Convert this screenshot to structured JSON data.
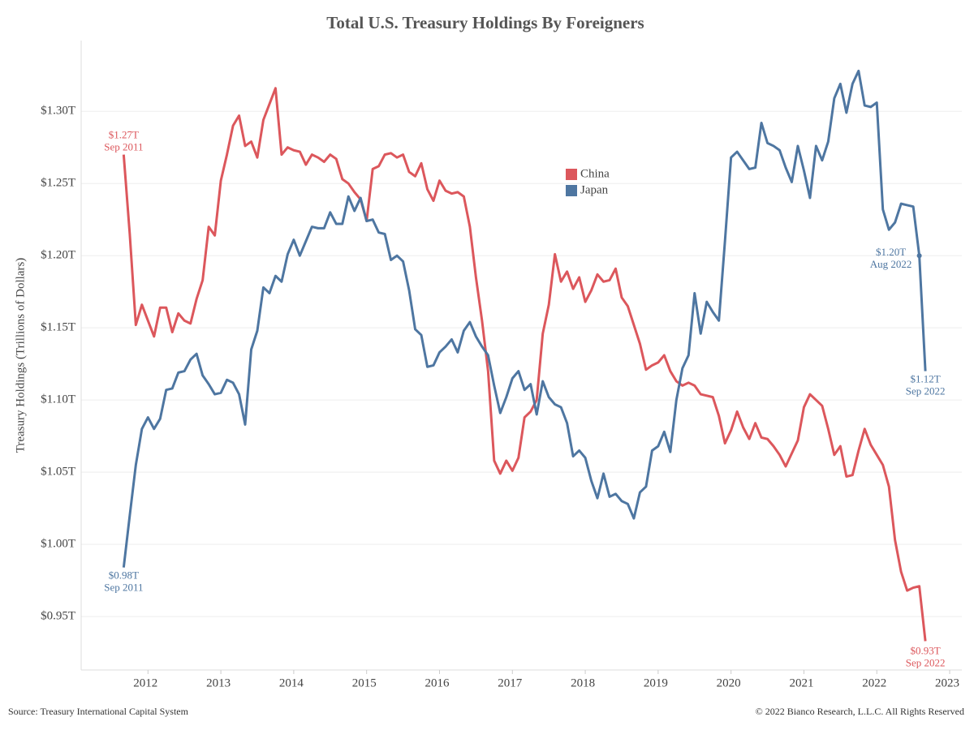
{
  "chart_data": {
    "type": "line",
    "title": "Total U.S. Treasury Holdings By Foreigners",
    "y_label": "Treasury Holdings (Trillions of Dollars)",
    "source": "Source: Treasury International Capital System",
    "copyright": "© 2022 Bianco Research, L.L.C. All Rights Reserved",
    "legend": "top-center",
    "grid": true,
    "x": [
      "2011-09",
      "2011-10",
      "2011-11",
      "2011-12",
      "2012-01",
      "2012-02",
      "2012-03",
      "2012-04",
      "2012-05",
      "2012-06",
      "2012-07",
      "2012-08",
      "2012-09",
      "2012-10",
      "2012-11",
      "2012-12",
      "2013-01",
      "2013-02",
      "2013-03",
      "2013-04",
      "2013-05",
      "2013-06",
      "2013-07",
      "2013-08",
      "2013-09",
      "2013-10",
      "2013-11",
      "2013-12",
      "2014-01",
      "2014-02",
      "2014-03",
      "2014-04",
      "2014-05",
      "2014-06",
      "2014-07",
      "2014-08",
      "2014-09",
      "2014-10",
      "2014-11",
      "2014-12",
      "2015-01",
      "2015-02",
      "2015-03",
      "2015-04",
      "2015-05",
      "2015-06",
      "2015-07",
      "2015-08",
      "2015-09",
      "2015-10",
      "2015-11",
      "2015-12",
      "2016-01",
      "2016-02",
      "2016-03",
      "2016-04",
      "2016-05",
      "2016-06",
      "2016-07",
      "2016-08",
      "2016-09",
      "2016-10",
      "2016-11",
      "2016-12",
      "2017-01",
      "2017-02",
      "2017-03",
      "2017-04",
      "2017-05",
      "2017-06",
      "2017-07",
      "2017-08",
      "2017-09",
      "2017-10",
      "2017-11",
      "2017-12",
      "2018-01",
      "2018-02",
      "2018-03",
      "2018-04",
      "2018-05",
      "2018-06",
      "2018-07",
      "2018-08",
      "2018-09",
      "2018-10",
      "2018-11",
      "2018-12",
      "2019-01",
      "2019-02",
      "2019-03",
      "2019-04",
      "2019-05",
      "2019-06",
      "2019-07",
      "2019-08",
      "2019-09",
      "2019-10",
      "2019-11",
      "2019-12",
      "2020-01",
      "2020-02",
      "2020-03",
      "2020-04",
      "2020-05",
      "2020-06",
      "2020-07",
      "2020-08",
      "2020-09",
      "2020-10",
      "2020-11",
      "2020-12",
      "2021-01",
      "2021-02",
      "2021-03",
      "2021-04",
      "2021-05",
      "2021-06",
      "2021-07",
      "2021-08",
      "2021-09",
      "2021-10",
      "2021-11",
      "2021-12",
      "2022-01",
      "2022-02",
      "2022-03",
      "2022-04",
      "2022-05",
      "2022-06",
      "2022-07",
      "2022-08",
      "2022-09"
    ],
    "series": [
      {
        "name": "China",
        "color": "#dc575c",
        "values": [
          1.27,
          1.215,
          1.152,
          1.166,
          1.155,
          1.144,
          1.164,
          1.164,
          1.147,
          1.16,
          1.155,
          1.153,
          1.17,
          1.183,
          1.22,
          1.214,
          1.252,
          1.27,
          1.29,
          1.297,
          1.276,
          1.279,
          1.268,
          1.294,
          1.305,
          1.316,
          1.27,
          1.275,
          1.273,
          1.272,
          1.263,
          1.27,
          1.268,
          1.265,
          1.27,
          1.267,
          1.253,
          1.25,
          1.244,
          1.239,
          1.224,
          1.26,
          1.262,
          1.27,
          1.271,
          1.268,
          1.27,
          1.258,
          1.255,
          1.264,
          1.246,
          1.238,
          1.252,
          1.245,
          1.243,
          1.244,
          1.241,
          1.22,
          1.185,
          1.155,
          1.12,
          1.058,
          1.049,
          1.058,
          1.051,
          1.06,
          1.088,
          1.092,
          1.1,
          1.146,
          1.166,
          1.201,
          1.182,
          1.189,
          1.177,
          1.185,
          1.168,
          1.176,
          1.187,
          1.182,
          1.183,
          1.191,
          1.171,
          1.165,
          1.152,
          1.139,
          1.121,
          1.124,
          1.126,
          1.131,
          1.12,
          1.113,
          1.11,
          1.112,
          1.11,
          1.104,
          1.103,
          1.102,
          1.089,
          1.07,
          1.079,
          1.092,
          1.081,
          1.073,
          1.084,
          1.074,
          1.073,
          1.068,
          1.062,
          1.054,
          1.063,
          1.072,
          1.095,
          1.104,
          1.1,
          1.096,
          1.08,
          1.062,
          1.068,
          1.047,
          1.048,
          1.065,
          1.08,
          1.069,
          1.062,
          1.055,
          1.04,
          1.003,
          0.981,
          0.968,
          0.97,
          0.971,
          0.933
        ]
      },
      {
        "name": "Japan",
        "color": "#4e76a1",
        "values": [
          0.984,
          1.02,
          1.055,
          1.08,
          1.088,
          1.08,
          1.087,
          1.107,
          1.108,
          1.119,
          1.12,
          1.128,
          1.132,
          1.117,
          1.111,
          1.104,
          1.105,
          1.114,
          1.112,
          1.104,
          1.083,
          1.135,
          1.148,
          1.178,
          1.174,
          1.186,
          1.182,
          1.201,
          1.211,
          1.2,
          1.21,
          1.22,
          1.219,
          1.219,
          1.23,
          1.222,
          1.222,
          1.241,
          1.231,
          1.24,
          1.224,
          1.225,
          1.216,
          1.215,
          1.197,
          1.2,
          1.196,
          1.176,
          1.149,
          1.145,
          1.123,
          1.124,
          1.133,
          1.137,
          1.142,
          1.133,
          1.148,
          1.154,
          1.144,
          1.137,
          1.131,
          1.11,
          1.091,
          1.102,
          1.115,
          1.12,
          1.107,
          1.111,
          1.09,
          1.113,
          1.102,
          1.097,
          1.095,
          1.084,
          1.061,
          1.065,
          1.06,
          1.044,
          1.032,
          1.049,
          1.033,
          1.035,
          1.03,
          1.028,
          1.018,
          1.036,
          1.04,
          1.065,
          1.068,
          1.078,
          1.064,
          1.1,
          1.122,
          1.131,
          1.174,
          1.146,
          1.168,
          1.161,
          1.155,
          1.21,
          1.268,
          1.272,
          1.266,
          1.26,
          1.261,
          1.292,
          1.278,
          1.276,
          1.273,
          1.261,
          1.251,
          1.276,
          1.259,
          1.24,
          1.276,
          1.266,
          1.279,
          1.309,
          1.319,
          1.299,
          1.319,
          1.328,
          1.304,
          1.303,
          1.306,
          1.232,
          1.218,
          1.223,
          1.236,
          1.235,
          1.234,
          1.2,
          1.12
        ]
      }
    ],
    "annotations": [
      {
        "text": "$1.27T",
        "date": "Sep 2011"
      },
      {
        "text": "$0.98T",
        "date": "Sep 2011"
      },
      {
        "text": "$1.20T",
        "date": "Aug 2022"
      },
      {
        "text": "$1.12T",
        "date": "Sep 2022"
      },
      {
        "text": "$0.93T",
        "date": "Sep 2022"
      }
    ],
    "xlim": [
      "2011-02",
      "2023-03"
    ],
    "xticks": [
      2012,
      2013,
      2014,
      2015,
      2016,
      2017,
      2018,
      2019,
      2020,
      2021,
      2022,
      2023
    ],
    "ylim": [
      0.913,
      1.349
    ],
    "yticks": [
      {
        "value": 0.95,
        "label": "$0.95T"
      },
      {
        "value": 1.0,
        "label": "$1.00T"
      },
      {
        "value": 1.05,
        "label": "$1.05T"
      },
      {
        "value": 1.1,
        "label": "$1.10T"
      },
      {
        "value": 1.15,
        "label": "$1.15T"
      },
      {
        "value": 1.2,
        "label": "$1.20T"
      },
      {
        "value": 1.25,
        "label": "$1.25T"
      },
      {
        "value": 1.3,
        "label": "$1.30T"
      }
    ]
  }
}
